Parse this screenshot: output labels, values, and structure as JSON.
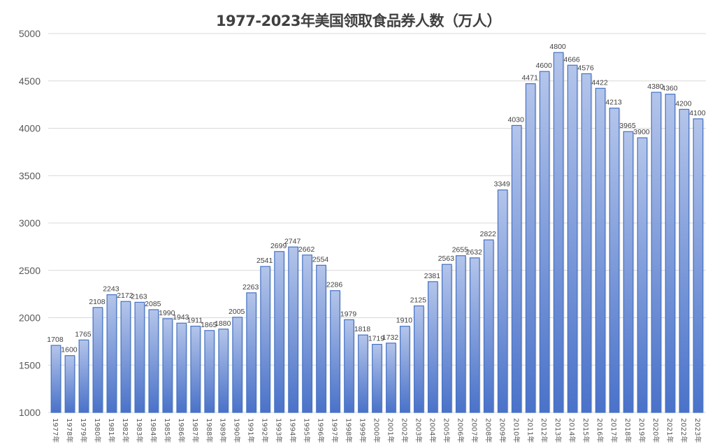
{
  "chart_data": {
    "type": "bar",
    "title": "1977-2023年美国领取食品券人数（万人）",
    "xlabel": "",
    "ylabel": "",
    "ylim": [
      1000,
      5000
    ],
    "yticks": [
      1000,
      1500,
      2000,
      2500,
      3000,
      3500,
      4000,
      4500,
      5000
    ],
    "grid": true,
    "legend": "none",
    "categories": [
      "1977年",
      "1978年",
      "1979年",
      "1980年",
      "1981年",
      "1982年",
      "1983年",
      "1984年",
      "1985年",
      "1986年",
      "1987年",
      "1988年",
      "1989年",
      "1990年",
      "1991年",
      "1992年",
      "1993年",
      "1994年",
      "1995年",
      "1996年",
      "1997年",
      "1998年",
      "1999年",
      "2000年",
      "2001年",
      "2002年",
      "2003年",
      "2004年",
      "2005年",
      "2006年",
      "2007年",
      "2008年",
      "2009年",
      "2010年",
      "2011年",
      "2012年",
      "2013年",
      "2014年",
      "2015年",
      "2016年",
      "2017年",
      "2018年",
      "2019年",
      "2020年",
      "2021年",
      "2022年",
      "2023年"
    ],
    "values": [
      1708,
      1600,
      1765,
      2108,
      2243,
      2172,
      2163,
      2085,
      1990,
      1943,
      1911,
      1865,
      1880,
      2005,
      2263,
      2541,
      2699,
      2747,
      2662,
      2554,
      2286,
      1979,
      1818,
      1719,
      1732,
      1910,
      2125,
      2381,
      2563,
      2655,
      2632,
      2822,
      3349,
      4030,
      4471,
      4600,
      4800,
      4666,
      4576,
      4422,
      4213,
      3965,
      3900,
      4380,
      4360,
      4200,
      4100
    ],
    "colors": {
      "bar_top": "#b4c5ea",
      "bar_bottom": "#4a72c9",
      "bar_border": "#4472c4",
      "grid": "#d9d9d9",
      "tick_text": "#595959",
      "label_text": "#404040"
    }
  }
}
